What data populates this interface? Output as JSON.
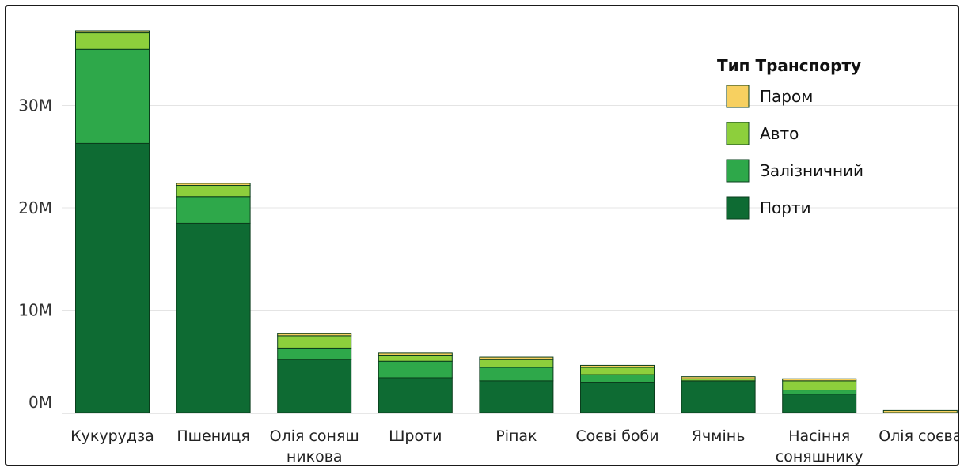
{
  "chart_data": {
    "type": "bar",
    "stacked": true,
    "title": "",
    "xlabel": "",
    "ylabel": "",
    "ylim": [
      0,
      38000000
    ],
    "y_ticks": [
      {
        "value": 0,
        "label": "0M"
      },
      {
        "value": 10000000,
        "label": "10M"
      },
      {
        "value": 20000000,
        "label": "20M"
      },
      {
        "value": 30000000,
        "label": "30M"
      }
    ],
    "grid": true,
    "legend": {
      "title": "Тип Транспорту",
      "placement": "top-right",
      "order": [
        "Паром",
        "Авто",
        "Залізничний",
        "Порти"
      ]
    },
    "categories": [
      [
        "Кукурудза"
      ],
      [
        "Пшениця"
      ],
      [
        "Олія соняш",
        "никова"
      ],
      [
        "Шроти"
      ],
      [
        "Ріпак"
      ],
      [
        "Соєві боби"
      ],
      [
        "Ячмінь"
      ],
      [
        "Насіння",
        "соняшнику"
      ],
      [
        "Олія соєва"
      ]
    ],
    "series": [
      {
        "name": "Порти",
        "color": "#0e6b33",
        "values": [
          26300000,
          18500000,
          5200000,
          3400000,
          3100000,
          2900000,
          3000000,
          1800000,
          0
        ]
      },
      {
        "name": "Залізничний",
        "color": "#2ea84a",
        "values": [
          9200000,
          2600000,
          1100000,
          1600000,
          1300000,
          800000,
          100000,
          400000,
          0
        ]
      },
      {
        "name": "Авто",
        "color": "#8dcf3c",
        "values": [
          1600000,
          1100000,
          1200000,
          600000,
          800000,
          700000,
          200000,
          900000,
          0
        ]
      },
      {
        "name": "Паром",
        "color": "#f7d060",
        "values": [
          200000,
          200000,
          200000,
          200000,
          200000,
          200000,
          200000,
          200000,
          200000
        ]
      }
    ]
  }
}
